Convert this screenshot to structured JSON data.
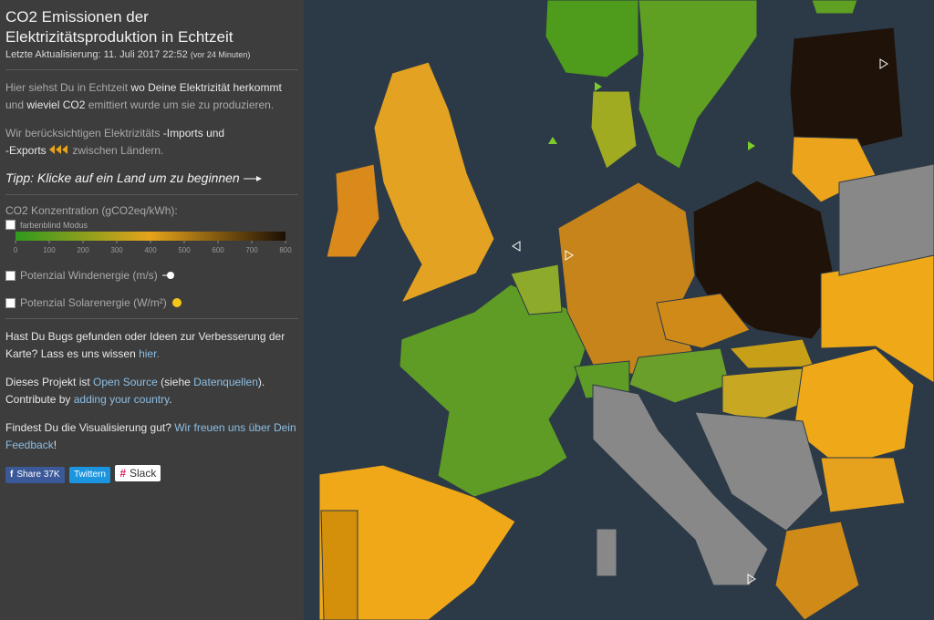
{
  "sidebar": {
    "title": "CO2 Emissionen der Elektrizitätsproduktion in Echtzeit",
    "update_label": "Letzte Aktualisierung:",
    "update_time": "11. Juli 2017 22:52",
    "update_ago": "(vor 24 Minuten)",
    "intro": [
      "Hier siehst Du in Echtzeit",
      "wo Deine Elektrizität herkommt",
      "und",
      "wieviel CO2",
      "emittiert wurde um sie zu produzieren."
    ],
    "imports": [
      "Wir berücksichtigen Elektrizitäts",
      "-Imports und",
      "-Exports",
      "zwischen Ländern."
    ],
    "tip": "Tipp: Klicke auf ein Land um zu beginnen",
    "colorscale": {
      "label": "CO2 Konzentration (gCO2eq/kWh):",
      "colorblind": "farbenblind Modus",
      "range": [
        0,
        800
      ],
      "ticks": [
        0,
        100,
        200,
        300,
        400,
        500,
        600,
        700,
        800
      ]
    },
    "wind": "Potenzial Windenergie (m/s)",
    "solar": "Potenzial Solarenergie (W/m²)",
    "bugs": [
      "Hast Du Bugs gefunden oder Ideen zur Verbesserung der Karte? Lass es uns wissen",
      "hier",
      "."
    ],
    "opensource": [
      "Dieses Projekt ist",
      "Open Source",
      "(siehe",
      "Datenquellen",
      ").",
      "Contribute by",
      "adding your country",
      "."
    ],
    "feedback": [
      "Findest Du die Visualisierung gut?",
      "Wir freuen uns über Dein Feedback",
      "!"
    ],
    "share": {
      "facebook": "Share",
      "count": "37K",
      "twitter": "Twittern",
      "slack": "Slack"
    }
  }
}
